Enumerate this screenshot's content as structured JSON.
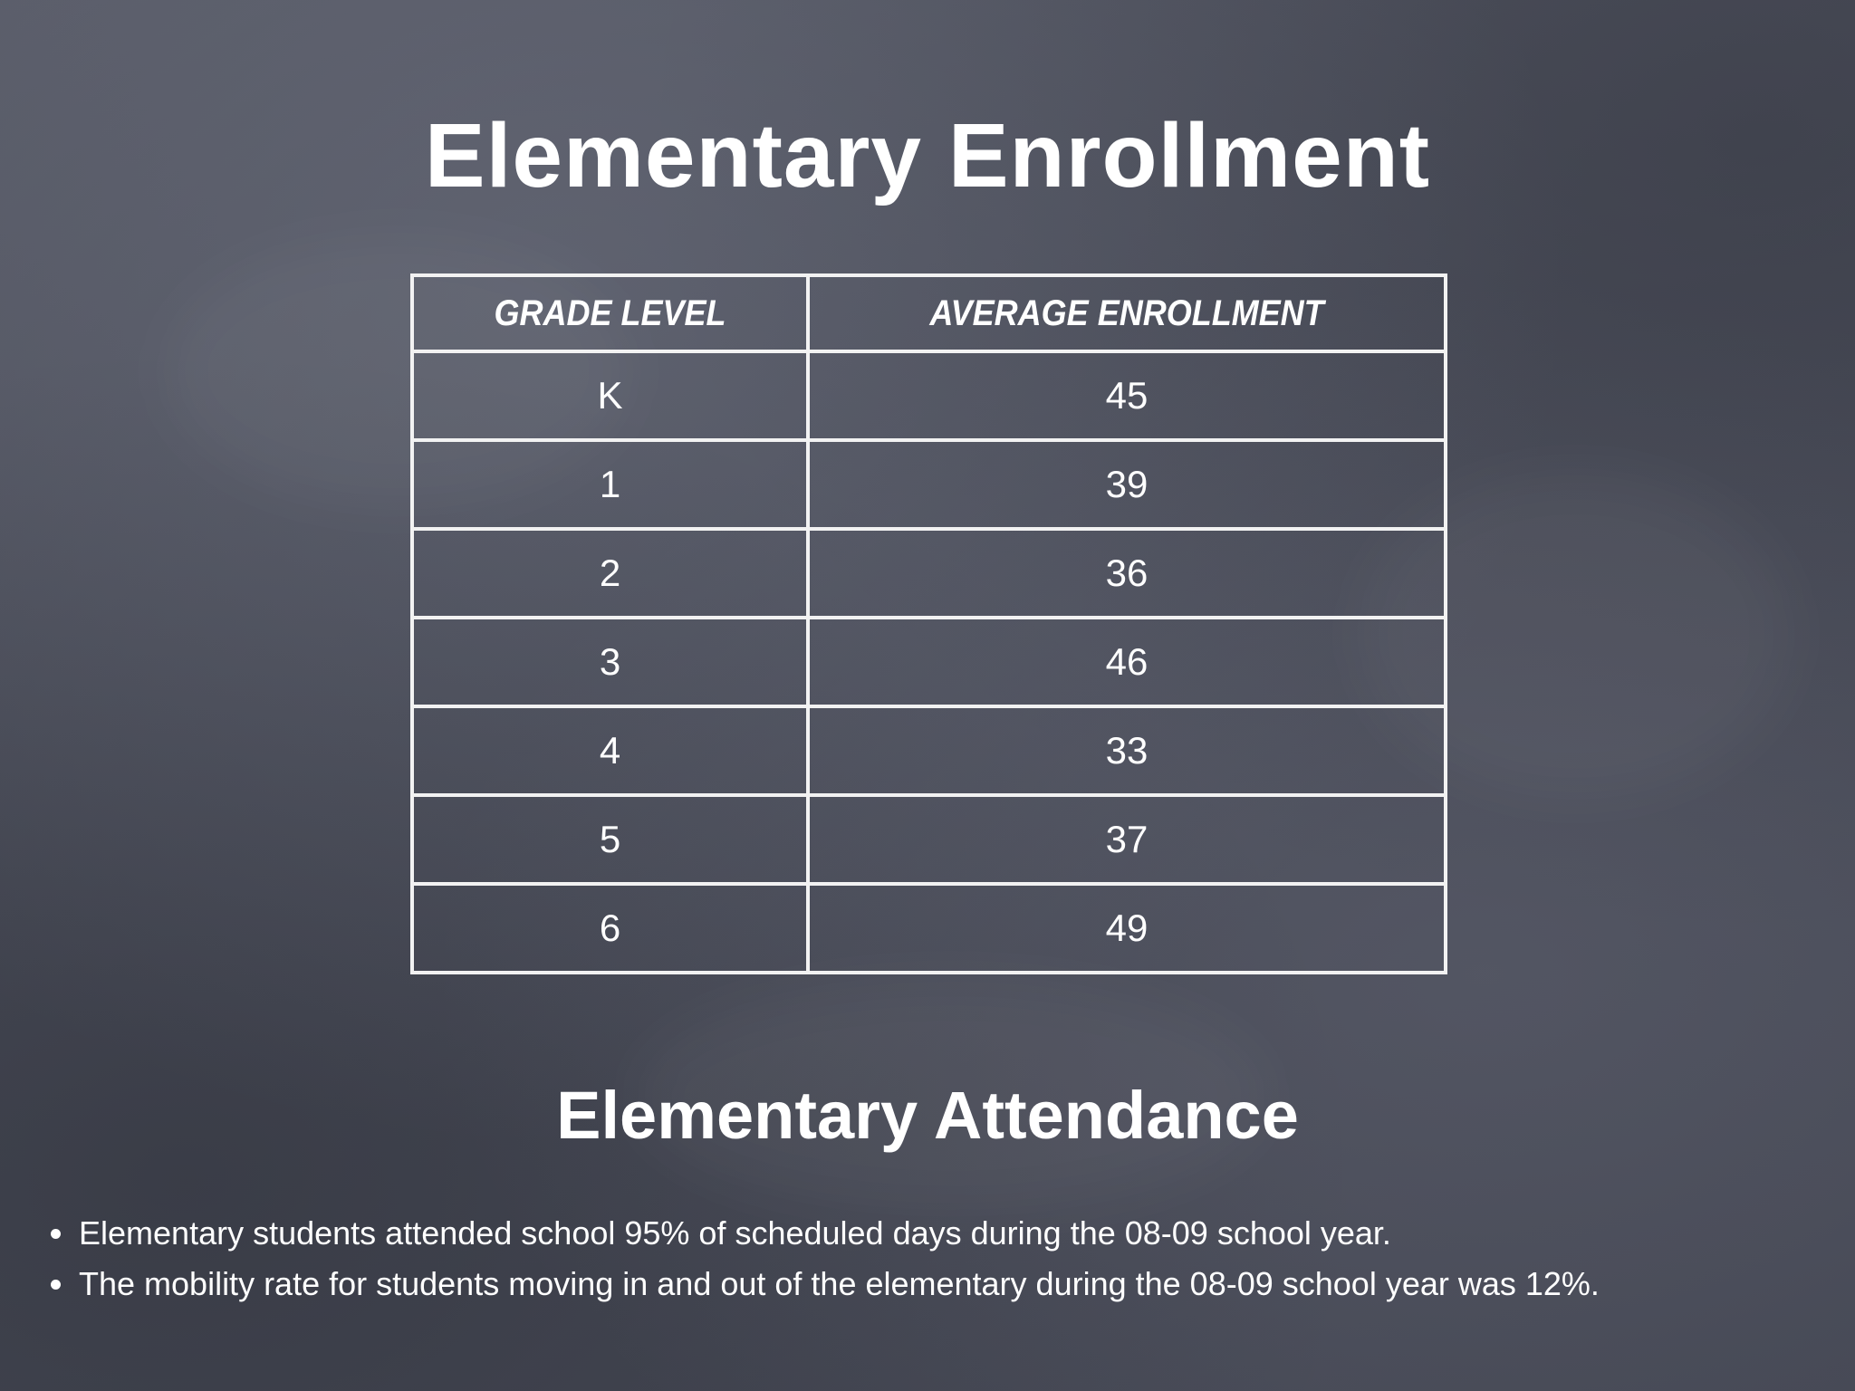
{
  "slide": {
    "title": "Elementary Enrollment",
    "table": {
      "headers": [
        "GRADE LEVEL",
        "AVERAGE ENROLLMENT"
      ],
      "rows": [
        [
          "K",
          "45"
        ],
        [
          "1",
          "39"
        ],
        [
          "2",
          "36"
        ],
        [
          "3",
          "46"
        ],
        [
          "4",
          "33"
        ],
        [
          "5",
          "37"
        ],
        [
          "6",
          "49"
        ]
      ]
    },
    "subtitle": "Elementary Attendance",
    "bullets": [
      "Elementary students attended school 95% of scheduled days during the 08-09 school year.",
      "The mobility rate for students moving in and out of the elementary during the 08-09 school year was 12%."
    ]
  }
}
